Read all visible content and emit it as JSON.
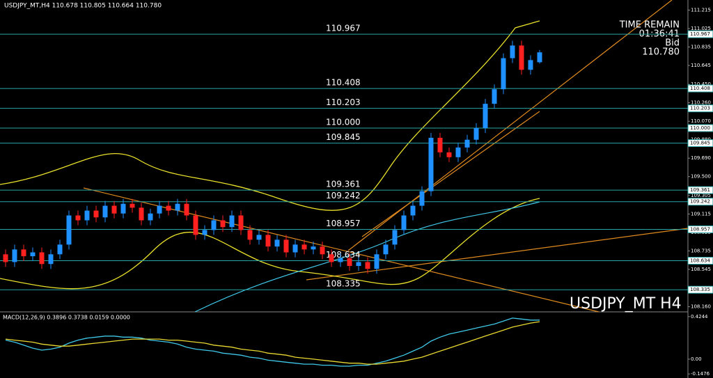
{
  "chart_data": {
    "type": "candlestick",
    "header": "USDJPY_MT,H4  110.678 110.805 110.664 110.780",
    "time_remain_label": "TIME REMAIN",
    "time_remain": "01:36:41",
    "bid_label": "Bid",
    "bid": "110.780",
    "watermark": "USDJPY_MT H4",
    "up_color": "#1e90ff",
    "down_color": "#ff2020",
    "level_color": "#2aa6a6",
    "ylim": [
      108.107,
      111.319
    ],
    "yticks": [
      111.215,
      111.025,
      110.835,
      110.645,
      {
        "value": 110.45,
        "label": "110.450"
      },
      {
        "value": 110.26,
        "label": "110.260"
      },
      {
        "value": 110.07,
        "label": "110.070"
      },
      {
        "value": 109.88,
        "label": "109.880"
      },
      {
        "value": 109.69,
        "label": "109.690"
      },
      {
        "value": 109.5,
        "label": "109.500"
      },
      109.305,
      109.115,
      108.925,
      108.735,
      108.545,
      {
        "value": 108.16,
        "label": "108.160"
      }
    ],
    "levels": [
      110.967,
      110.408,
      110.203,
      {
        "value": 110,
        "label": "110.000"
      },
      109.845,
      109.361,
      109.242,
      108.957,
      108.634,
      108.335
    ],
    "open": [
      108.7,
      108.62,
      108.75,
      108.68,
      108.72,
      108.6,
      108.7,
      108.8,
      109.1,
      109.05,
      109.15,
      109.08,
      109.2,
      109.12,
      109.22,
      109.18,
      109.05,
      109.12,
      109.2,
      109.15,
      109.22,
      109.1,
      108.9,
      108.95,
      109.05,
      108.98,
      109.1,
      108.95,
      108.85,
      108.9,
      108.78,
      108.85,
      108.72,
      108.8,
      108.75,
      108.78,
      108.7,
      108.62,
      108.66,
      108.58,
      108.62,
      108.55,
      108.7,
      108.8,
      108.95,
      109.1,
      109.2,
      109.35,
      109.9,
      109.75,
      109.7,
      109.8,
      109.88,
      110.0,
      110.25,
      110.4,
      110.72,
      110.85,
      110.6,
      110.678
    ],
    "high": [
      108.75,
      108.8,
      108.8,
      108.77,
      108.77,
      108.75,
      108.85,
      109.15,
      109.15,
      109.2,
      109.2,
      109.25,
      109.25,
      109.27,
      109.27,
      109.23,
      109.17,
      109.25,
      109.25,
      109.27,
      109.27,
      109.15,
      109.0,
      109.1,
      109.1,
      109.15,
      109.15,
      109.0,
      108.95,
      108.95,
      108.9,
      108.9,
      108.85,
      108.85,
      108.83,
      108.83,
      108.75,
      108.71,
      108.71,
      108.67,
      108.67,
      108.75,
      108.85,
      109.0,
      109.15,
      109.25,
      109.4,
      109.95,
      109.95,
      109.8,
      109.85,
      109.93,
      110.05,
      110.3,
      110.45,
      110.77,
      110.9,
      110.9,
      110.75,
      110.805
    ],
    "low": [
      108.57,
      108.57,
      108.63,
      108.63,
      108.55,
      108.55,
      108.65,
      108.75,
      109.0,
      109.0,
      109.03,
      109.03,
      109.07,
      109.07,
      109.13,
      109.0,
      109.0,
      109.07,
      109.1,
      109.1,
      109.05,
      108.85,
      108.85,
      108.9,
      108.93,
      108.93,
      108.9,
      108.8,
      108.8,
      108.73,
      108.73,
      108.67,
      108.67,
      108.7,
      108.7,
      108.65,
      108.57,
      108.57,
      108.53,
      108.53,
      108.5,
      108.5,
      108.65,
      108.75,
      108.9,
      109.05,
      109.15,
      109.3,
      109.7,
      109.65,
      109.65,
      109.75,
      109.83,
      109.95,
      110.2,
      110.35,
      110.67,
      110.55,
      110.55,
      110.664
    ],
    "close": [
      108.62,
      108.75,
      108.68,
      108.72,
      108.6,
      108.7,
      108.8,
      109.1,
      109.05,
      109.15,
      109.08,
      109.2,
      109.12,
      109.22,
      109.18,
      109.05,
      109.12,
      109.2,
      109.15,
      109.22,
      109.1,
      108.9,
      108.95,
      109.05,
      108.98,
      109.1,
      108.95,
      108.85,
      108.9,
      108.78,
      108.85,
      108.72,
      108.8,
      108.75,
      108.78,
      108.7,
      108.62,
      108.66,
      108.58,
      108.62,
      108.55,
      108.7,
      108.8,
      108.95,
      109.1,
      109.2,
      109.35,
      109.9,
      109.75,
      109.7,
      109.8,
      109.88,
      110.0,
      110.25,
      110.4,
      110.72,
      110.85,
      110.6,
      110.7,
      110.78
    ],
    "macd": {
      "header": "MACD(12,26,9) 0.3896 0.3738 0.0159 0.0000",
      "ylim": [
        -0.188,
        0.458
      ],
      "yticks": [
        0.4244,
        {
          "value": 0,
          "label": "0.00"
        },
        -0.1476
      ],
      "series": [
        {
          "color": "#3fc8e8",
          "values": [
            0.19,
            0.17,
            0.14,
            0.11,
            0.09,
            0.1,
            0.12,
            0.16,
            0.19,
            0.21,
            0.22,
            0.23,
            0.23,
            0.22,
            0.22,
            0.21,
            0.19,
            0.18,
            0.17,
            0.15,
            0.12,
            0.1,
            0.09,
            0.08,
            0.06,
            0.05,
            0.04,
            0.02,
            0.01,
            -0.01,
            -0.02,
            -0.03,
            -0.04,
            -0.05,
            -0.05,
            -0.06,
            -0.06,
            -0.07,
            -0.07,
            -0.06,
            -0.06,
            -0.04,
            -0.02,
            0.01,
            0.04,
            0.08,
            0.12,
            0.18,
            0.22,
            0.25,
            0.27,
            0.29,
            0.31,
            0.33,
            0.35,
            0.38,
            0.41,
            0.4,
            0.39,
            0.3896
          ]
        },
        {
          "color": "#e8d830",
          "values": [
            0.2,
            0.19,
            0.18,
            0.17,
            0.15,
            0.14,
            0.13,
            0.13,
            0.14,
            0.15,
            0.16,
            0.17,
            0.18,
            0.19,
            0.2,
            0.2,
            0.2,
            0.2,
            0.19,
            0.19,
            0.18,
            0.17,
            0.16,
            0.14,
            0.13,
            0.12,
            0.1,
            0.09,
            0.08,
            0.06,
            0.05,
            0.04,
            0.02,
            0.01,
            0.0,
            -0.01,
            -0.02,
            -0.03,
            -0.04,
            -0.04,
            -0.05,
            -0.05,
            -0.04,
            -0.03,
            -0.02,
            0.0,
            0.02,
            0.05,
            0.08,
            0.11,
            0.14,
            0.17,
            0.2,
            0.23,
            0.26,
            0.29,
            0.32,
            0.34,
            0.36,
            0.3738
          ]
        }
      ]
    }
  }
}
